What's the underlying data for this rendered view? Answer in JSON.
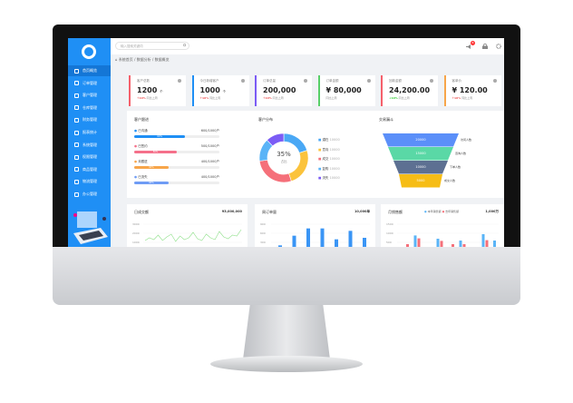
{
  "sidebar": {
    "items": [
      "首页概览",
      "订单管理",
      "客户管理",
      "仓库管理",
      "财务管理",
      "报表统计",
      "系统管理",
      "权限管理",
      "商品管理",
      "物流管理",
      "办公管理"
    ],
    "active": 0,
    "brand_color": "#1f8ff5"
  },
  "header": {
    "search_placeholder": "输入搜索关键词",
    "notification_count": "8",
    "breadcrumb": "系统首页 / 数据分析 / 数据概览"
  },
  "cards": [
    {
      "title": "客户总数",
      "value": "1200",
      "unit": "个",
      "change": "↑10%",
      "note": "同比上周",
      "color": "#f5606b"
    },
    {
      "title": "今日新增客户",
      "value": "1000",
      "unit": "个",
      "change": "↑10%",
      "note": "同比上周",
      "color": "#1f8ff5"
    },
    {
      "title": "订单总量",
      "value": "200,000",
      "unit": "",
      "change": "↑10%",
      "note": "同比上周",
      "color": "#7b5cf5"
    },
    {
      "title": "订单金额",
      "value": "¥ 80,000",
      "unit": "",
      "change": "",
      "note": "同比上周",
      "color": "#58d068"
    },
    {
      "title": "回款金额",
      "value": "24,200.00",
      "unit": "",
      "change": "↓10%",
      "note": "同比上周",
      "color": "#f5606b"
    },
    {
      "title": "客单价",
      "value": "¥ 120.00",
      "unit": "",
      "change": "↑10%",
      "note": "同比上周",
      "color": "#f7a54a"
    }
  ],
  "progress": {
    "title": "客户跟进",
    "items": [
      {
        "label": "已沟通",
        "value": "600/1000户",
        "pct": 60,
        "pct_label": "60%",
        "color": "#1f8ff5"
      },
      {
        "label": "已签约",
        "value": "500/1000户",
        "pct": 50,
        "pct_label": "50%",
        "color": "#f5708a"
      },
      {
        "label": "未跟进",
        "value": "400/1000户",
        "pct": 40,
        "pct_label": "40%",
        "color": "#f7a54a"
      },
      {
        "label": "已流失",
        "value": "400/1000户",
        "pct": 40,
        "pct_label": "40%",
        "color": "#6f9cf5"
      }
    ]
  },
  "donut": {
    "title": "客户分布",
    "center": "35%",
    "sub": "占比",
    "items": [
      {
        "label": "潜在",
        "value": "10000",
        "color": "#4aa8f5",
        "share": 20
      },
      {
        "label": "意向",
        "value": "10000",
        "color": "#fbc33c",
        "share": 25
      },
      {
        "label": "成交",
        "value": "10000",
        "color": "#f5707a",
        "share": 28
      },
      {
        "label": "复购",
        "value": "10000",
        "color": "#5ab4f7",
        "share": 15
      },
      {
        "label": "流失",
        "value": "10000",
        "color": "#7b5cf5",
        "share": 12
      }
    ]
  },
  "funnel": {
    "title": "交易漏斗",
    "items": [
      {
        "value": "20000",
        "label": "访问人数",
        "color": "#5b8ff9"
      },
      {
        "value": "15000",
        "label": "咨询人数",
        "color": "#5ad8a6"
      },
      {
        "value": "10000",
        "label": "下单人数",
        "color": "#5d7092"
      },
      {
        "value": "5000",
        "label": "成交人数",
        "color": "#f6bd16"
      }
    ]
  },
  "daily": {
    "title": "日成交额",
    "total": "¥3,000,000",
    "yticks": [
      "3000",
      "2000",
      "1000"
    ],
    "values": [
      1200,
      1500,
      1300,
      1800,
      1200,
      1600,
      1900,
      1100,
      1700,
      1300,
      1500,
      2100,
      1400,
      1200,
      1900,
      1500,
      1300,
      2200,
      1600,
      1400,
      1800,
      1700,
      2400
    ],
    "color": "#8fe08a"
  },
  "weekly": {
    "title": "周订单量",
    "total": "10,000单",
    "yticks": [
      "900",
      "600",
      "300"
    ],
    "values": [
      200,
      520,
      760,
      760,
      400,
      680,
      450
    ],
    "color": "#3a95f5"
  },
  "monthly": {
    "title": "月销售额",
    "total": "1,000万",
    "legend": [
      "本年销售额",
      "去年销售额"
    ],
    "colors": [
      "#5ab4f7",
      "#f5707a"
    ],
    "yticks": [
      "1500",
      "1000",
      "500"
    ],
    "a": [
      0,
      880,
      0,
      700,
      50,
      600,
      0,
      950,
      600
    ],
    "b": [
      400,
      720,
      0,
      580,
      400,
      400,
      0,
      620,
      0
    ]
  }
}
